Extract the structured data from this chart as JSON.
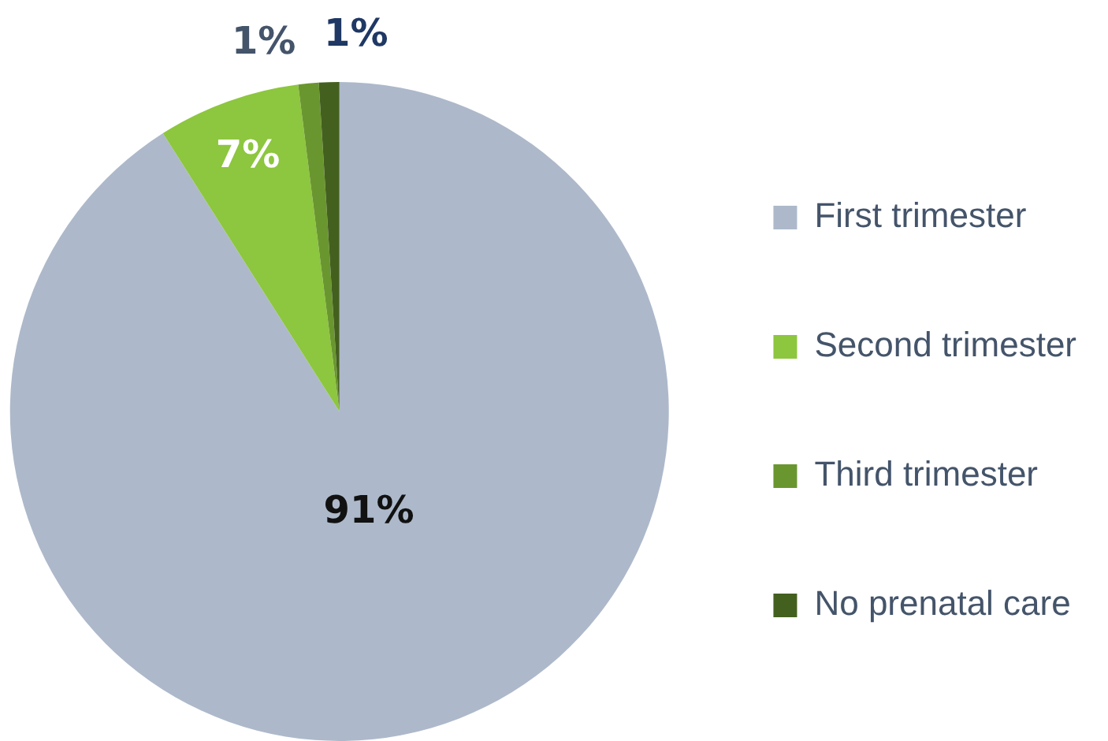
{
  "chart_data": {
    "type": "pie",
    "categories": [
      "First trimester",
      "Second trimester",
      "Third trimester",
      "No prenatal care"
    ],
    "values": [
      91,
      7,
      1,
      1
    ],
    "colors": [
      "#adb9ca",
      "#8dc63f",
      "#6a962f",
      "#44601f"
    ],
    "value_labels": [
      "91%",
      "7%",
      "1%",
      "1%"
    ],
    "legend": "right"
  }
}
